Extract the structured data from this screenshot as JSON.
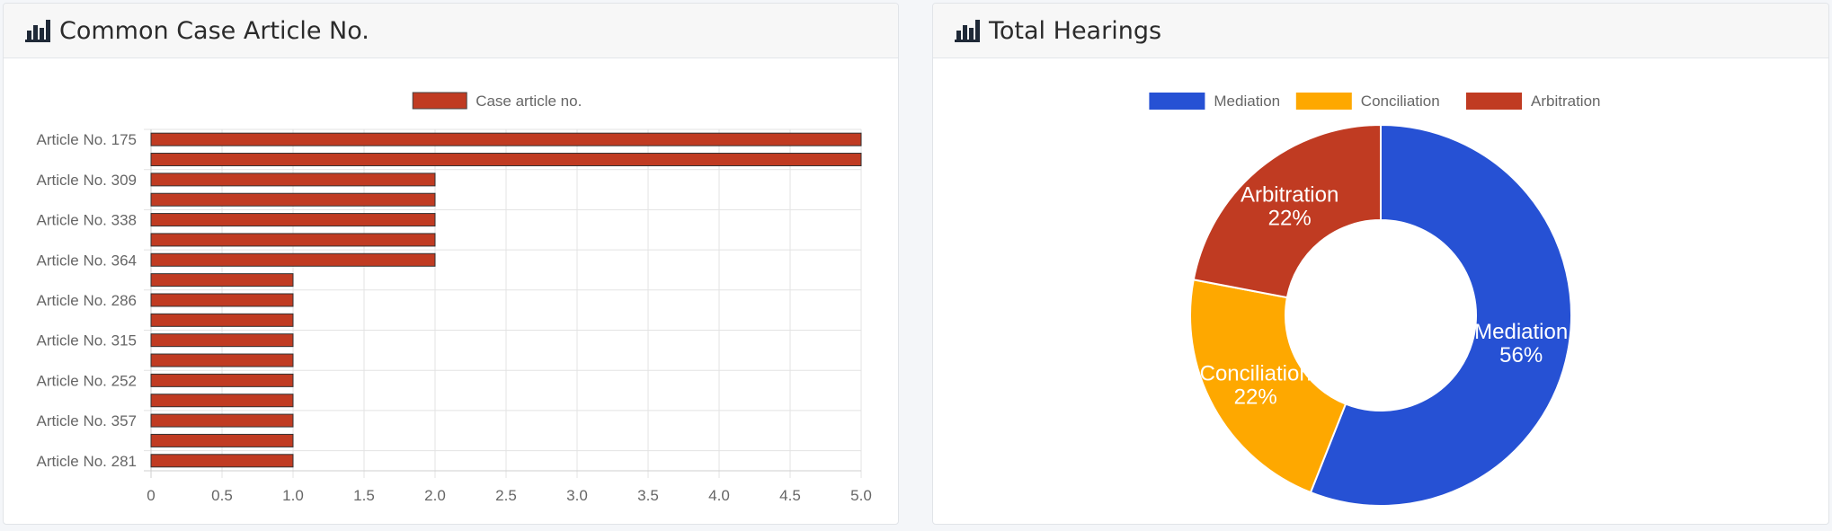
{
  "left_panel": {
    "title": "Common Case Article No.",
    "icon": "bar-chart-icon"
  },
  "right_panel": {
    "title": "Total Hearings",
    "icon": "bar-chart-icon"
  },
  "chart_data": [
    {
      "type": "bar",
      "orientation": "horizontal",
      "legend": [
        "Case article no."
      ],
      "legend_position": "top",
      "categories": [
        "Article No. 175",
        "",
        "Article No. 309",
        "",
        "Article No. 338",
        "",
        "Article No. 364",
        "",
        "Article No. 286",
        "",
        "Article No. 315",
        "",
        "Article No. 252",
        "",
        "Article No. 357",
        "",
        "Article No. 281"
      ],
      "series": [
        {
          "name": "Case article no.",
          "values": [
            5,
            5,
            2,
            2,
            2,
            2,
            2,
            1,
            1,
            1,
            1,
            1,
            1,
            1,
            1,
            1,
            1
          ]
        }
      ],
      "xlim": [
        0,
        5
      ],
      "xticks": [
        "0",
        "0.5",
        "1.0",
        "1.5",
        "2.0",
        "2.5",
        "3.0",
        "3.5",
        "4.0",
        "4.5",
        "5.0"
      ],
      "grid": true,
      "color": "#c03b22"
    },
    {
      "type": "pie",
      "variant": "doughnut",
      "legend_position": "top",
      "slices": [
        {
          "label": "Mediation",
          "value": 56,
          "display": "56%",
          "color": "#2651d4"
        },
        {
          "label": "Conciliation",
          "value": 22,
          "display": "22%",
          "color": "#fea800"
        },
        {
          "label": "Arbitration",
          "value": 22,
          "display": "22%",
          "color": "#c03b22"
        }
      ]
    }
  ]
}
